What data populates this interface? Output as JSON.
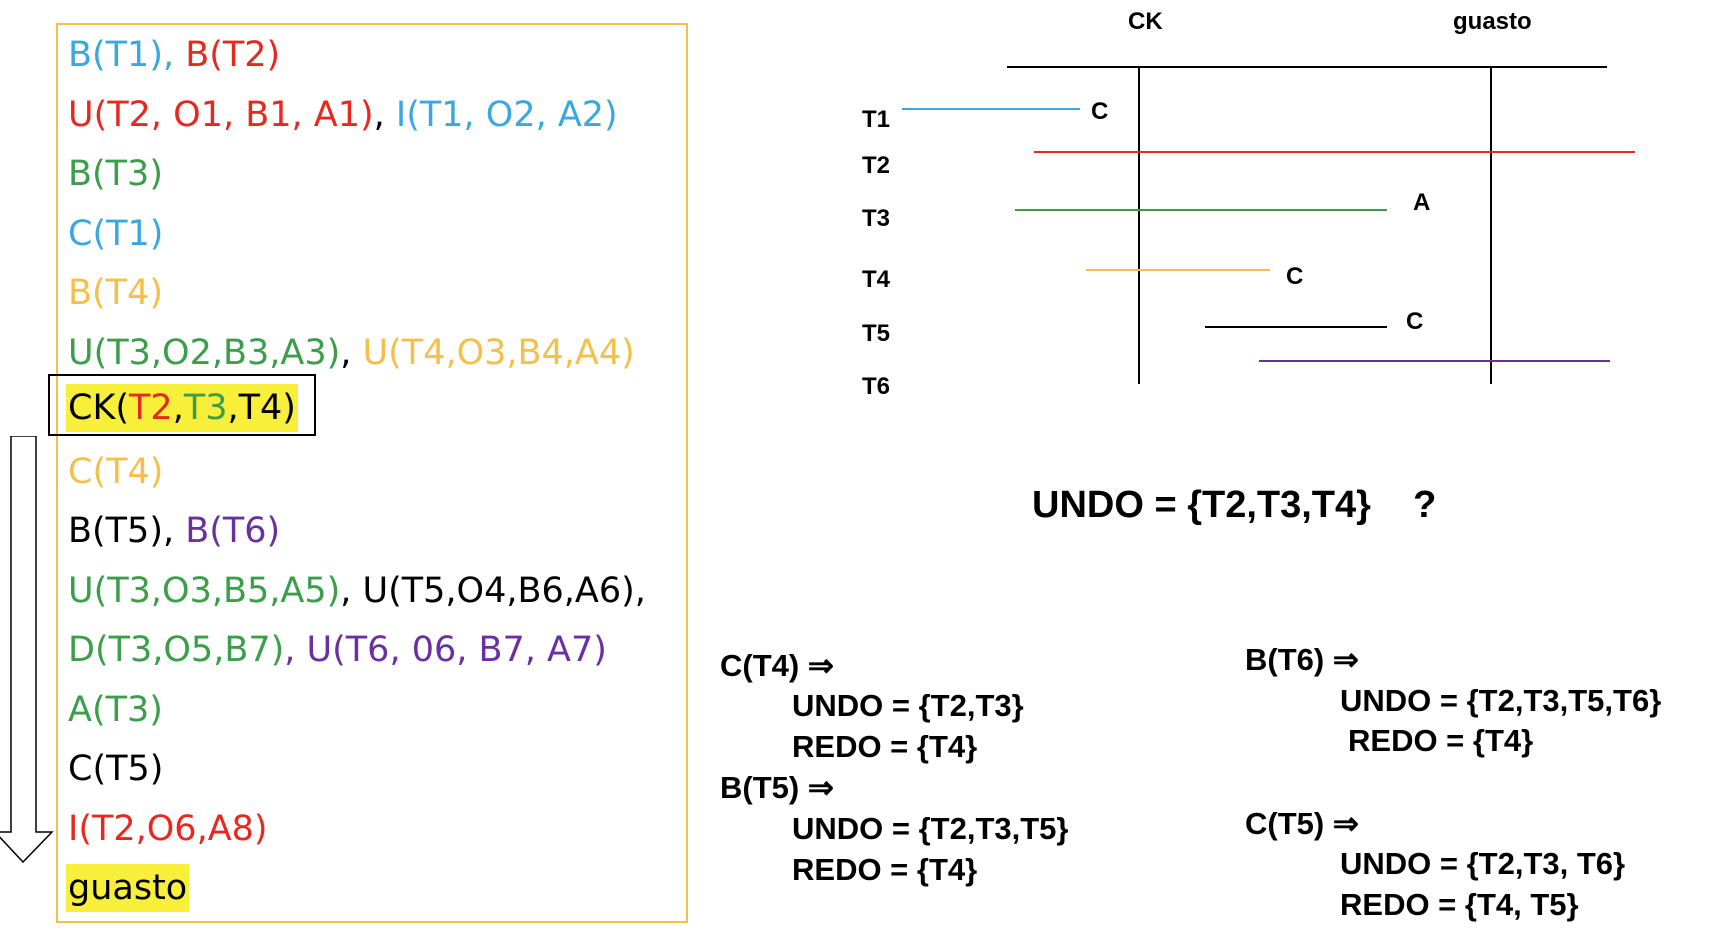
{
  "colors": {
    "T1": "#3aa8e0",
    "T2": "#e8281e",
    "T3": "#3a9e4a",
    "T4": "#f5c04a",
    "T5": "#000000",
    "T6": "#6a2fa0",
    "highlight": "#f8ef3a",
    "box_border": "#f5c04a"
  },
  "log": {
    "line1": [
      "B(T1)",
      ", ",
      "B(T2)"
    ],
    "line2": [
      "U(T2, O1, B1, A1)",
      ", ",
      "I(T1, O2, A2)"
    ],
    "line3": "B(T3)",
    "line4": "C(T1)",
    "line5": "B(T4)",
    "line6": [
      "U(T3,O2,B3,A3)",
      ", ",
      "U(T4,O3,B4,A4)"
    ],
    "line7": [
      "CK(",
      "T2",
      ",",
      "T3",
      ",T4)"
    ],
    "line8": "C(T4)",
    "line9": [
      "B(T5), ",
      "B(T6)"
    ],
    "line10": [
      "U(T3,O3,B5,A5)",
      ", U(T5,O4,B6,A6),"
    ],
    "line11": [
      "D(T3,O5,B7)",
      ", ",
      "U(T6, 06, B7, A7)"
    ],
    "line12": "A(T3)",
    "line13": "C(T5)",
    "line14": "I(T2,O6,A8)",
    "line15": "guasto"
  },
  "timeline": {
    "header_ck": "CK",
    "header_fault": "guasto",
    "transactions": [
      "T1",
      "T2",
      "T3",
      "T4",
      "T5",
      "T6"
    ],
    "marks": {
      "t1": "C",
      "t3": "A",
      "t4": "C",
      "t5": "C"
    }
  },
  "question": "UNDO = {T2,T3,T4}    ?",
  "events": {
    "c_t4": {
      "title": "C(T4) ⇒",
      "undo": "UNDO = {T2,T3}",
      "redo": "REDO = {T4}"
    },
    "b_t5": {
      "title": "B(T5) ⇒",
      "undo": "UNDO = {T2,T3,T5}",
      "redo": "REDO = {T4}"
    },
    "b_t6": {
      "title": "B(T6) ⇒",
      "undo": "UNDO = {T2,T3,T5,T6}",
      "redo": "REDO = {T4}"
    },
    "c_t5": {
      "title": "C(T5) ⇒",
      "undo": "UNDO = {T2,T3, T6}",
      "redo": "REDO = {T4, T5}"
    }
  }
}
